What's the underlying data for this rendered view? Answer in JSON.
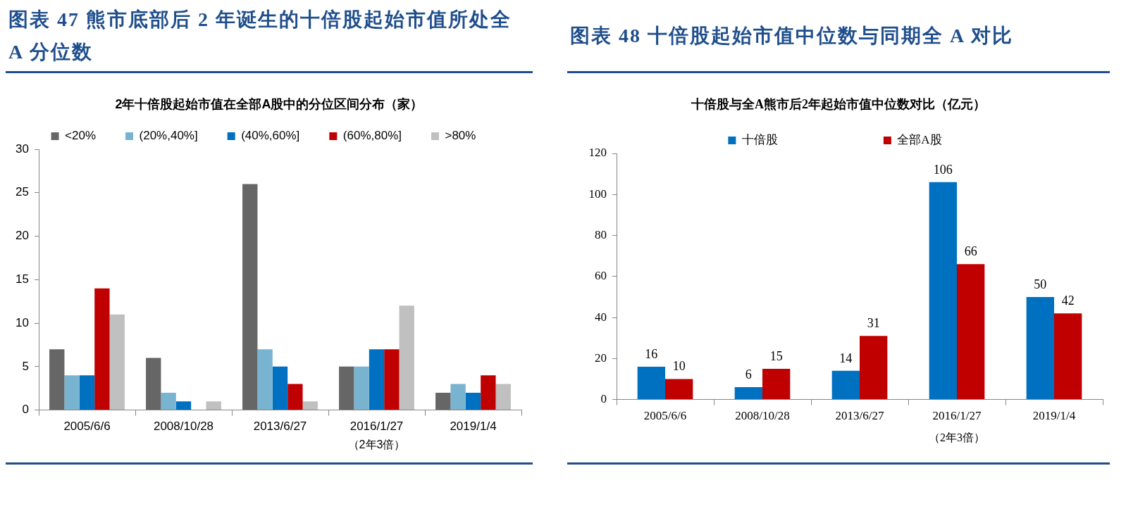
{
  "chart_data": [
    {
      "type": "bar",
      "title": "图表 47 熊市底部后 2 年诞生的十倍股起始市值所处全 A 分位数",
      "subtitle": "2年十倍股起始市值在全部A股中的分位区间分布（家）",
      "xlabel": "（2年3倍）",
      "categories": [
        "2005/6/6",
        "2008/10/28",
        "2013/6/27",
        "2016/1/27",
        "2019/1/4"
      ],
      "series": [
        {
          "name": "<20%",
          "color": "#666666",
          "values": [
            7,
            6,
            26,
            5,
            2
          ]
        },
        {
          "name": "(20%,40%]",
          "color": "#78b4d0",
          "values": [
            4,
            2,
            7,
            5,
            3
          ]
        },
        {
          "name": "(40%,60%]",
          "color": "#0070c0",
          "values": [
            4,
            1,
            5,
            7,
            2
          ]
        },
        {
          "name": "(60%,80%]",
          "color": "#c00000",
          "values": [
            14,
            0,
            3,
            7,
            4
          ]
        },
        {
          "name": ">80%",
          "color": "#c0c0c0",
          "values": [
            11,
            1,
            1,
            12,
            3
          ]
        }
      ],
      "ylim": [
        0,
        30
      ],
      "yticks": [
        0,
        5,
        10,
        15,
        20,
        25,
        30
      ],
      "legend": "top"
    },
    {
      "type": "bar",
      "title": "图表 48 十倍股起始市值中位数与同期全 A 对比",
      "subtitle": "十倍股与全A熊市后2年起始市值中位数对比（亿元）",
      "xlabel": "（2年3倍）",
      "categories": [
        "2005/6/6",
        "2008/10/28",
        "2013/6/27",
        "2016/1/27",
        "2019/1/4"
      ],
      "series": [
        {
          "name": "十倍股",
          "color": "#0070c0",
          "values": [
            16,
            6,
            14,
            106,
            50
          ]
        },
        {
          "name": "全部A股",
          "color": "#c00000",
          "values": [
            10,
            15,
            31,
            66,
            42
          ]
        }
      ],
      "ylim": [
        0,
        120
      ],
      "yticks": [
        0,
        20,
        40,
        60,
        80,
        100,
        120
      ],
      "legend": "top",
      "data_labels": true
    }
  ]
}
